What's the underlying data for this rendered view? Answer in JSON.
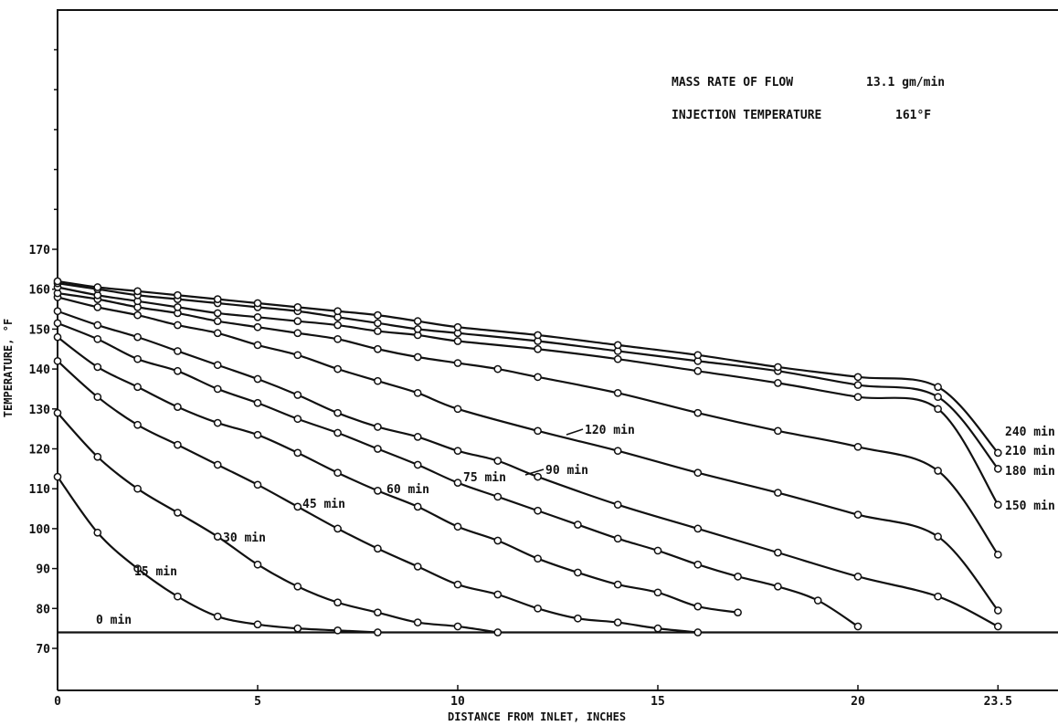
{
  "notes": {
    "flow_label": "MASS RATE OF FLOW",
    "flow_value": "13.1 gm/min",
    "injection_label": "INJECTION TEMPERATURE",
    "injection_value": "161°F"
  },
  "chart_data": {
    "type": "line",
    "title": "",
    "xlabel": "DISTANCE FROM INLET, INCHES",
    "ylabel": "TEMPERATURE, °F",
    "xlim": [
      0,
      25
    ],
    "ylim": [
      61,
      242
    ],
    "x_ticks": [
      0,
      5,
      10,
      15,
      20,
      23.5
    ],
    "x_tick_labels": [
      "0",
      "5",
      "10",
      "15",
      "20",
      "23.5"
    ],
    "y_ticks": [
      70,
      80,
      90,
      100,
      110,
      120,
      130,
      140,
      150,
      160,
      170
    ],
    "y_tick_labels": [
      "70",
      "80",
      "90",
      "100",
      "110",
      "120",
      "130",
      "140",
      "150",
      "160",
      "170"
    ],
    "grid": false,
    "series": [
      {
        "name": "0 min",
        "x": [
          0,
          23.5
        ],
        "y": [
          74,
          74
        ]
      },
      {
        "name": "15 min",
        "x": [
          0,
          1,
          2,
          3,
          4,
          5,
          6,
          7,
          8
        ],
        "y": [
          113,
          99,
          90,
          83,
          78,
          76,
          75,
          74.5,
          74
        ]
      },
      {
        "name": "30 min",
        "x": [
          0,
          1,
          2,
          3,
          4,
          5,
          6,
          7,
          8,
          9,
          10,
          11
        ],
        "y": [
          129,
          118,
          110,
          104,
          98,
          91,
          85.5,
          81.5,
          79,
          76.5,
          75.5,
          74
        ]
      },
      {
        "name": "45 min",
        "x": [
          0,
          1,
          2,
          3,
          4,
          5,
          6,
          7,
          8,
          9,
          10,
          11,
          12,
          13,
          14,
          15,
          16
        ],
        "y": [
          142,
          133,
          126,
          121,
          116,
          111,
          105.5,
          100,
          95,
          90.5,
          86,
          83.5,
          80,
          77.5,
          76.5,
          75,
          74
        ]
      },
      {
        "name": "60 min",
        "x": [
          0,
          1,
          2,
          3,
          4,
          5,
          6,
          7,
          8,
          9,
          10,
          11,
          12,
          13,
          14,
          15,
          16,
          17
        ],
        "y": [
          148,
          140.5,
          135.5,
          130.5,
          126.5,
          123.5,
          119,
          114,
          109.5,
          105.5,
          100.5,
          97,
          92.5,
          89,
          86,
          84,
          80.5,
          79
        ]
      },
      {
        "name": "75 min",
        "x": [
          0,
          1,
          2,
          3,
          4,
          5,
          6,
          7,
          8,
          9,
          10,
          11,
          12,
          13,
          14,
          15,
          16,
          17,
          18,
          19,
          20
        ],
        "y": [
          151.5,
          147.5,
          142.5,
          139.5,
          135,
          131.5,
          127.5,
          124,
          120,
          116,
          111.5,
          108,
          104.5,
          101,
          97.5,
          94.5,
          91,
          88,
          85.5,
          82,
          75.5
        ]
      },
      {
        "name": "90 min",
        "x": [
          0,
          1,
          2,
          3,
          4,
          5,
          6,
          7,
          8,
          9,
          10,
          11,
          12,
          14,
          16,
          18,
          20,
          22,
          23.5
        ],
        "y": [
          154.5,
          151,
          148,
          144.5,
          141,
          137.5,
          133.5,
          129,
          125.5,
          123,
          119.5,
          117,
          113,
          106,
          100,
          94,
          88,
          83,
          75.5
        ]
      },
      {
        "name": "120 min",
        "x": [
          0,
          1,
          2,
          3,
          4,
          5,
          6,
          7,
          8,
          9,
          10,
          12,
          14,
          16,
          18,
          20,
          22,
          23.5
        ],
        "y": [
          158,
          155.5,
          153.5,
          151,
          149,
          146,
          143.5,
          140,
          137,
          134,
          130,
          124.5,
          119.5,
          114,
          109,
          103.5,
          98,
          79.5
        ]
      },
      {
        "name": "150 min",
        "x": [
          0,
          1,
          2,
          3,
          4,
          5,
          6,
          7,
          8,
          9,
          10,
          11,
          12,
          14,
          16,
          18,
          20,
          22,
          23.5
        ],
        "y": [
          159,
          157.5,
          155.5,
          154,
          152,
          150.5,
          149,
          147.5,
          145,
          143,
          141.5,
          140,
          138,
          134,
          129,
          124.5,
          120.5,
          114.5,
          93.5
        ]
      },
      {
        "name": "180 min",
        "x": [
          0,
          1,
          2,
          3,
          4,
          5,
          6,
          7,
          8,
          9,
          10,
          12,
          14,
          16,
          18,
          20,
          22,
          23.5
        ],
        "y": [
          160.5,
          158.5,
          157,
          155.5,
          154,
          153,
          152,
          151,
          149.5,
          148.5,
          147,
          145,
          142.5,
          139.5,
          136.5,
          133,
          130,
          106
        ]
      },
      {
        "name": "210 min",
        "x": [
          0,
          1,
          2,
          3,
          4,
          5,
          6,
          7,
          8,
          9,
          10,
          12,
          14,
          16,
          18,
          20,
          22,
          23.5
        ],
        "y": [
          161.5,
          160,
          158.5,
          157.5,
          156.5,
          155.5,
          154.5,
          153,
          151.5,
          150,
          149,
          147,
          144.5,
          142,
          139.5,
          136,
          133,
          115
        ]
      },
      {
        "name": "240 min",
        "x": [
          0,
          1,
          2,
          3,
          4,
          5,
          6,
          7,
          8,
          9,
          10,
          12,
          14,
          16,
          18,
          20,
          22,
          23.5
        ],
        "y": [
          162,
          160.5,
          159.5,
          158.5,
          157.5,
          156.5,
          155.5,
          154.5,
          153.5,
          152,
          150.5,
          148.5,
          146,
          143.5,
          140.5,
          138,
          135.5,
          119
        ]
      }
    ],
    "curve_labels": [
      {
        "text": "0 min",
        "series": "0 min"
      },
      {
        "text": "15 min",
        "series": "15 min"
      },
      {
        "text": "30 min",
        "series": "30 min"
      },
      {
        "text": "45 min",
        "series": "45 min"
      },
      {
        "text": "60 min",
        "series": "60 min"
      },
      {
        "text": "75 min",
        "series": "75 min"
      },
      {
        "text": "90 min",
        "series": "90 min"
      },
      {
        "text": "120 min",
        "series": "120 min"
      },
      {
        "text": "150 min",
        "series": "150 min"
      },
      {
        "text": "180 min",
        "series": "180 min"
      },
      {
        "text": "210 min",
        "series": "210 min"
      },
      {
        "text": "240 min",
        "series": "240 min"
      }
    ]
  }
}
